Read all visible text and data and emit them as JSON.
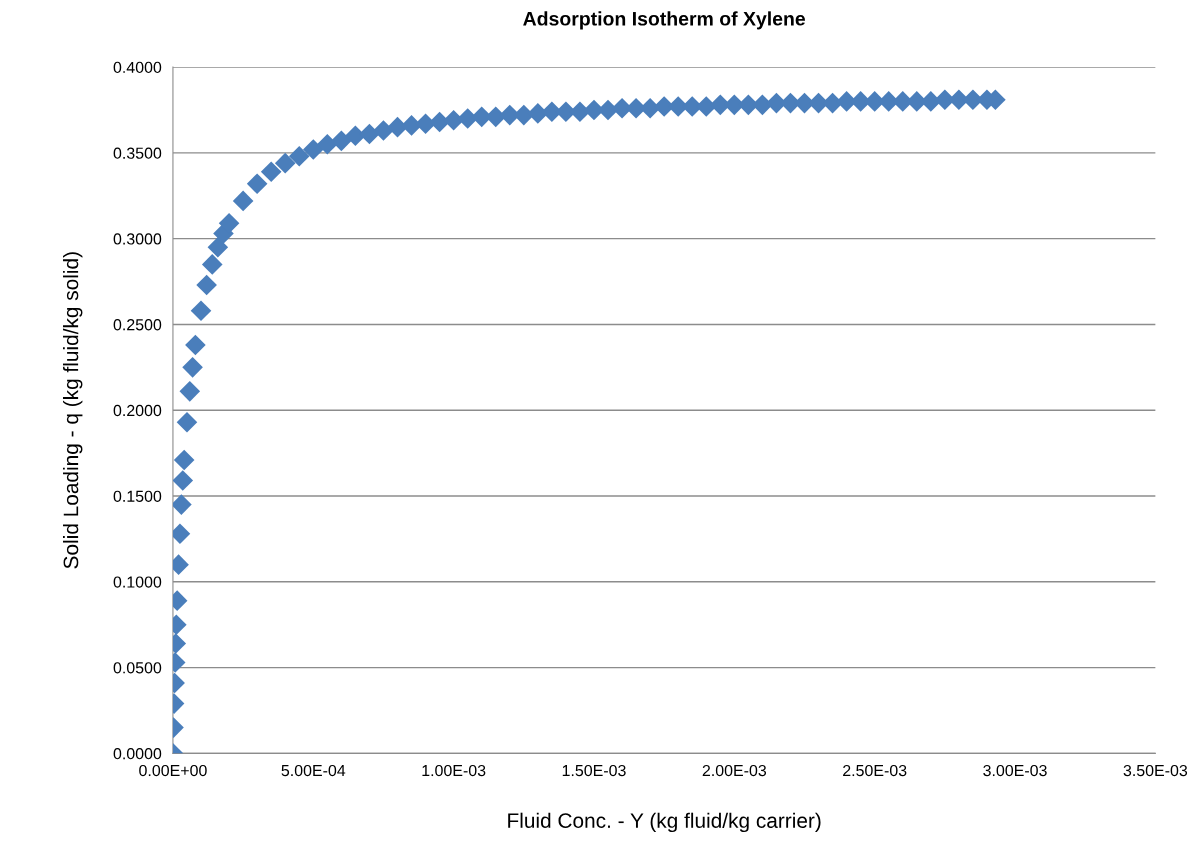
{
  "chart_data": {
    "type": "scatter",
    "title": "Adsorption Isotherm of Xylene",
    "xlabel": "Fluid Conc. - Y (kg fluid/kg carrier)",
    "ylabel": "Solid Loading - q (kg fluid/kg solid)",
    "marker": "diamond",
    "grid": "y",
    "legend": false,
    "xlim": [
      0,
      0.0035
    ],
    "ylim": [
      0,
      0.4
    ],
    "xticks": [
      {
        "value": 0,
        "label": "0.00E+00"
      },
      {
        "value": 0.0005,
        "label": "5.00E-04"
      },
      {
        "value": 0.001,
        "label": "1.00E-03"
      },
      {
        "value": 0.0015,
        "label": "1.50E-03"
      },
      {
        "value": 0.002,
        "label": "2.00E-03"
      },
      {
        "value": 0.0025,
        "label": "2.50E-03"
      },
      {
        "value": 0.003,
        "label": "3.00E-03"
      },
      {
        "value": 0.0035,
        "label": "3.50E-03"
      }
    ],
    "yticks": [
      {
        "value": 0,
        "label": "0.0000"
      },
      {
        "value": 0.05,
        "label": "0.0500"
      },
      {
        "value": 0.1,
        "label": "0.1000"
      },
      {
        "value": 0.15,
        "label": "0.1500"
      },
      {
        "value": 0.2,
        "label": "0.2000"
      },
      {
        "value": 0.25,
        "label": "0.2500"
      },
      {
        "value": 0.3,
        "label": "0.3000"
      },
      {
        "value": 0.35,
        "label": "0.3500"
      },
      {
        "value": 0.4,
        "label": "0.4000"
      }
    ],
    "series": [
      {
        "color": "#4a7ebb",
        "x": [
          0,
          2e-06,
          4e-06,
          6e-06,
          8e-06,
          1e-05,
          1.2e-05,
          1.5e-05,
          2e-05,
          2.5e-05,
          3e-05,
          3.5e-05,
          4e-05,
          5e-05,
          6e-05,
          7e-05,
          8e-05,
          0.0001,
          0.00012,
          0.00014,
          0.00016,
          0.00018,
          0.0002,
          0.00025,
          0.0003,
          0.00035,
          0.0004,
          0.00045,
          0.0005,
          0.00055,
          0.0006,
          0.00065,
          0.0007,
          0.00075,
          0.0008,
          0.00085,
          0.0009,
          0.00095,
          0.001,
          0.00105,
          0.0011,
          0.00115,
          0.0012,
          0.00125,
          0.0013,
          0.00135,
          0.0014,
          0.00145,
          0.0015,
          0.00155,
          0.0016,
          0.00165,
          0.0017,
          0.00175,
          0.0018,
          0.00185,
          0.0019,
          0.00195,
          0.002,
          0.00205,
          0.0021,
          0.00215,
          0.0022,
          0.00225,
          0.0023,
          0.00235,
          0.0024,
          0.00245,
          0.0025,
          0.00255,
          0.0026,
          0.00265,
          0.0027,
          0.00275,
          0.0028,
          0.00285,
          0.0029,
          0.00293
        ],
        "values": [
          0,
          0.015,
          0.029,
          0.041,
          0.053,
          0.064,
          0.075,
          0.089,
          0.11,
          0.128,
          0.145,
          0.159,
          0.171,
          0.193,
          0.211,
          0.225,
          0.238,
          0.258,
          0.273,
          0.285,
          0.295,
          0.303,
          0.309,
          0.322,
          0.332,
          0.339,
          0.344,
          0.348,
          0.352,
          0.355,
          0.357,
          0.36,
          0.361,
          0.363,
          0.365,
          0.366,
          0.367,
          0.368,
          0.369,
          0.37,
          0.371,
          0.371,
          0.372,
          0.372,
          0.373,
          0.374,
          0.374,
          0.374,
          0.375,
          0.375,
          0.376,
          0.376,
          0.376,
          0.377,
          0.377,
          0.377,
          0.377,
          0.378,
          0.378,
          0.378,
          0.378,
          0.379,
          0.379,
          0.379,
          0.379,
          0.379,
          0.38,
          0.38,
          0.38,
          0.38,
          0.38,
          0.38,
          0.38,
          0.381,
          0.381,
          0.381,
          0.381,
          0.381
        ]
      }
    ]
  }
}
